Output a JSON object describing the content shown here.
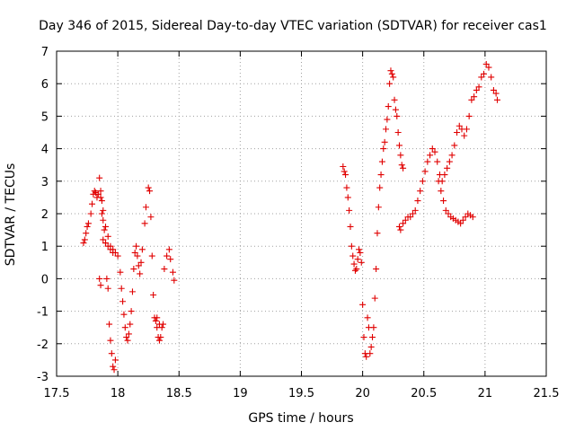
{
  "chart_data": {
    "type": "scatter",
    "title": "Day 346 of 2015, Sidereal Day-to-day VTEC variation (SDTVAR) for receiver cas1",
    "xlabel": "GPS time / hours",
    "ylabel": "SDTVAR / TECUs",
    "xlim": [
      17.5,
      21.5
    ],
    "ylim": [
      -3,
      7
    ],
    "xticks": [
      "17.5",
      "18",
      "18.5",
      "19",
      "19.5",
      "20",
      "20.5",
      "21",
      "21.5"
    ],
    "yticks": [
      "-3",
      "-2",
      "-1",
      "0",
      "1",
      "2",
      "3",
      "4",
      "5",
      "6",
      "7"
    ],
    "grid": true,
    "marker": "+",
    "color": "#e00000",
    "series": [
      {
        "points": [
          [
            17.72,
            1.1
          ],
          [
            17.73,
            1.2
          ],
          [
            17.74,
            1.4
          ],
          [
            17.75,
            1.6
          ],
          [
            17.76,
            1.7
          ],
          [
            17.78,
            2.0
          ],
          [
            17.79,
            2.3
          ],
          [
            17.8,
            2.6
          ],
          [
            17.81,
            2.7
          ],
          [
            17.82,
            2.65
          ],
          [
            17.83,
            2.5
          ],
          [
            17.84,
            2.6
          ],
          [
            17.85,
            3.1
          ],
          [
            17.86,
            2.7
          ],
          [
            17.87,
            2.4
          ],
          [
            17.88,
            2.1
          ],
          [
            17.89,
            1.5
          ],
          [
            17.9,
            1.1
          ],
          [
            17.91,
            0.0
          ],
          [
            17.92,
            -0.3
          ],
          [
            17.93,
            -1.4
          ],
          [
            17.94,
            -1.9
          ],
          [
            17.95,
            -2.3
          ],
          [
            17.96,
            -2.7
          ],
          [
            17.97,
            -2.8
          ],
          [
            17.98,
            -2.5
          ],
          [
            17.86,
            2.5
          ],
          [
            17.87,
            2.0
          ],
          [
            17.88,
            1.8
          ],
          [
            17.9,
            1.6
          ],
          [
            17.92,
            1.3
          ],
          [
            17.94,
            1.0
          ],
          [
            17.96,
            0.9
          ],
          [
            17.98,
            0.8
          ],
          [
            18.0,
            0.7
          ],
          [
            17.88,
            1.2
          ],
          [
            17.9,
            1.1
          ],
          [
            17.92,
            1.0
          ],
          [
            17.94,
            0.9
          ],
          [
            17.96,
            0.8
          ],
          [
            18.02,
            0.2
          ],
          [
            18.03,
            -0.3
          ],
          [
            18.04,
            -0.7
          ],
          [
            18.05,
            -1.1
          ],
          [
            18.06,
            -1.5
          ],
          [
            18.07,
            -1.8
          ],
          [
            18.08,
            -1.9
          ],
          [
            18.09,
            -1.7
          ],
          [
            18.1,
            -1.4
          ],
          [
            18.11,
            -1.0
          ],
          [
            18.12,
            -0.4
          ],
          [
            18.13,
            0.3
          ],
          [
            18.14,
            0.8
          ],
          [
            18.15,
            1.0
          ],
          [
            18.16,
            0.7
          ],
          [
            18.17,
            0.4
          ],
          [
            18.18,
            0.15
          ],
          [
            18.19,
            0.5
          ],
          [
            18.2,
            0.9
          ],
          [
            18.22,
            1.7
          ],
          [
            18.23,
            2.2
          ],
          [
            18.25,
            2.8
          ],
          [
            18.26,
            2.7
          ],
          [
            18.27,
            1.9
          ],
          [
            18.28,
            0.7
          ],
          [
            18.29,
            -0.5
          ],
          [
            18.3,
            -1.2
          ],
          [
            18.31,
            -1.3
          ],
          [
            18.32,
            -1.5
          ],
          [
            18.33,
            -1.8
          ],
          [
            18.34,
            -1.9
          ],
          [
            18.35,
            -1.8
          ],
          [
            18.37,
            -1.4
          ],
          [
            18.38,
            0.3
          ],
          [
            18.4,
            0.7
          ],
          [
            18.42,
            0.9
          ],
          [
            18.43,
            0.6
          ],
          [
            18.45,
            0.2
          ],
          [
            18.46,
            -0.05
          ],
          [
            17.85,
            0.0
          ],
          [
            17.86,
            -0.2
          ],
          [
            18.32,
            -1.2
          ],
          [
            18.34,
            -1.4
          ],
          [
            18.36,
            -1.5
          ],
          [
            19.84,
            3.45
          ],
          [
            19.85,
            3.3
          ],
          [
            19.86,
            3.2
          ],
          [
            19.87,
            2.8
          ],
          [
            19.88,
            2.5
          ],
          [
            19.89,
            2.1
          ],
          [
            19.9,
            1.6
          ],
          [
            19.91,
            1.0
          ],
          [
            19.92,
            0.7
          ],
          [
            19.93,
            0.45
          ],
          [
            19.94,
            0.25
          ],
          [
            19.95,
            0.3
          ],
          [
            19.96,
            0.6
          ],
          [
            19.97,
            0.9
          ],
          [
            19.98,
            0.8
          ],
          [
            19.99,
            0.5
          ],
          [
            20.0,
            -0.8
          ],
          [
            20.01,
            -1.8
          ],
          [
            20.02,
            -2.3
          ],
          [
            20.03,
            -2.4
          ],
          [
            20.04,
            -1.2
          ],
          [
            20.05,
            -1.5
          ],
          [
            20.06,
            -2.3
          ],
          [
            20.07,
            -2.1
          ],
          [
            20.08,
            -1.8
          ],
          [
            20.09,
            -1.5
          ],
          [
            20.1,
            -0.6
          ],
          [
            20.11,
            0.3
          ],
          [
            20.12,
            1.4
          ],
          [
            20.13,
            2.2
          ],
          [
            20.14,
            2.8
          ],
          [
            20.15,
            3.2
          ],
          [
            20.16,
            3.6
          ],
          [
            20.17,
            4.0
          ],
          [
            20.18,
            4.2
          ],
          [
            20.19,
            4.6
          ],
          [
            20.2,
            4.9
          ],
          [
            20.21,
            5.3
          ],
          [
            20.22,
            6.0
          ],
          [
            20.23,
            6.4
          ],
          [
            20.24,
            6.3
          ],
          [
            20.25,
            6.2
          ],
          [
            20.26,
            5.5
          ],
          [
            20.27,
            5.2
          ],
          [
            20.28,
            5.0
          ],
          [
            20.29,
            4.5
          ],
          [
            20.3,
            4.1
          ],
          [
            20.31,
            3.8
          ],
          [
            20.32,
            3.5
          ],
          [
            20.33,
            3.4
          ],
          [
            20.3,
            1.6
          ],
          [
            20.31,
            1.5
          ],
          [
            20.33,
            1.7
          ],
          [
            20.35,
            1.8
          ],
          [
            20.37,
            1.9
          ],
          [
            20.39,
            1.9
          ],
          [
            20.41,
            2.0
          ],
          [
            20.43,
            2.1
          ],
          [
            20.45,
            2.4
          ],
          [
            20.47,
            2.7
          ],
          [
            20.49,
            3.0
          ],
          [
            20.51,
            3.3
          ],
          [
            20.53,
            3.6
          ],
          [
            20.55,
            3.8
          ],
          [
            20.57,
            4.0
          ],
          [
            20.59,
            3.9
          ],
          [
            20.61,
            3.6
          ],
          [
            20.63,
            3.2
          ],
          [
            20.65,
            3.0
          ],
          [
            20.67,
            3.2
          ],
          [
            20.69,
            3.4
          ],
          [
            20.71,
            3.6
          ],
          [
            20.73,
            3.8
          ],
          [
            20.75,
            4.1
          ],
          [
            20.77,
            4.5
          ],
          [
            20.79,
            4.7
          ],
          [
            20.81,
            4.6
          ],
          [
            20.83,
            4.4
          ],
          [
            20.85,
            4.6
          ],
          [
            20.87,
            5.0
          ],
          [
            20.89,
            5.5
          ],
          [
            20.91,
            5.6
          ],
          [
            20.93,
            5.8
          ],
          [
            20.95,
            5.9
          ],
          [
            20.97,
            6.2
          ],
          [
            20.99,
            6.3
          ],
          [
            21.01,
            6.6
          ],
          [
            21.03,
            6.5
          ],
          [
            21.05,
            6.2
          ],
          [
            21.07,
            5.8
          ],
          [
            21.09,
            5.7
          ],
          [
            21.1,
            5.5
          ],
          [
            20.62,
            3.0
          ],
          [
            20.64,
            2.7
          ],
          [
            20.66,
            2.4
          ],
          [
            20.68,
            2.1
          ],
          [
            20.7,
            2.0
          ],
          [
            20.72,
            1.9
          ],
          [
            20.74,
            1.85
          ],
          [
            20.76,
            1.8
          ],
          [
            20.78,
            1.75
          ],
          [
            20.8,
            1.7
          ],
          [
            20.82,
            1.8
          ],
          [
            20.84,
            1.9
          ],
          [
            20.86,
            2.0
          ],
          [
            20.88,
            1.95
          ],
          [
            20.9,
            1.9
          ]
        ]
      }
    ]
  }
}
